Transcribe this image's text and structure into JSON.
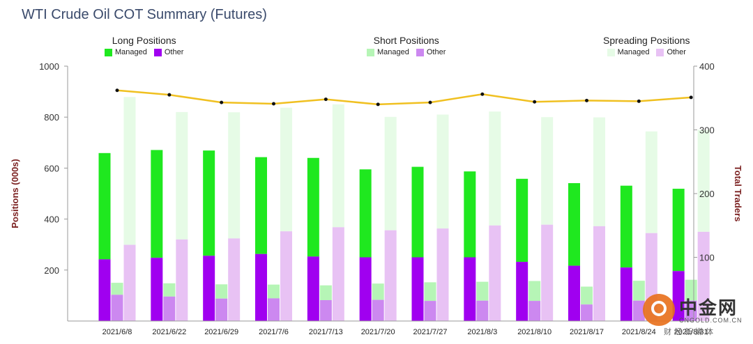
{
  "title": "WTI Crude Oil COT Summary (Futures)",
  "legend": {
    "long": {
      "heading": "Long Positions",
      "managed": "Managed",
      "other": "Other"
    },
    "short": {
      "heading": "Short Positions",
      "managed": "Managed",
      "other": "Other"
    },
    "spreading": {
      "heading": "Spreading Positions",
      "managed": "Managed",
      "other": "Other"
    }
  },
  "colors": {
    "long_managed": "#1fe81f",
    "long_other": "#a000f0",
    "short_managed": "#b6f5b6",
    "short_other": "#cc88f0",
    "spreading_managed": "#e6fbe6",
    "spreading_other": "#e8c2f4",
    "traders_line": "#f0c020",
    "traders_marker": "#111111"
  },
  "watermark": {
    "brand": "中金网",
    "url": "CNGOLD.COM.CN",
    "sub": "财经新媒体"
  },
  "chart_data": {
    "type": "bar",
    "title": "WTI Crude Oil COT Summary (Futures)",
    "ylabel": "Positions (000s)",
    "y2label": "Total Traders",
    "ylim": [
      0,
      1000
    ],
    "y2lim": [
      0,
      400
    ],
    "yticks": [
      "200",
      "400",
      "600",
      "800",
      "1000"
    ],
    "y2ticks": [
      "100",
      "200",
      "300",
      "400"
    ],
    "categories": [
      "2021/6/8",
      "2021/6/22",
      "2021/6/29",
      "2021/7/6",
      "2021/7/13",
      "2021/7/20",
      "2021/7/27",
      "2021/8/3",
      "2021/8/10",
      "2021/8/17",
      "2021/8/24",
      "2021/8/31"
    ],
    "series": [
      {
        "name": "Long Positions Managed",
        "group": "long",
        "values": [
          417,
          423,
          413,
          380,
          387,
          345,
          355,
          337,
          326,
          324,
          321,
          323
        ]
      },
      {
        "name": "Long Positions Other",
        "group": "long",
        "values": [
          242,
          248,
          256,
          263,
          253,
          250,
          250,
          250,
          232,
          217,
          210,
          196
        ]
      },
      {
        "name": "Short Positions Managed",
        "group": "short",
        "values": [
          47,
          52,
          56,
          54,
          58,
          64,
          73,
          74,
          78,
          70,
          78,
          82
        ]
      },
      {
        "name": "Short Positions Other",
        "group": "short",
        "values": [
          103,
          96,
          88,
          89,
          82,
          83,
          79,
          80,
          79,
          65,
          80,
          80
        ]
      },
      {
        "name": "Spreading Positions Managed",
        "group": "spreading",
        "values": [
          580,
          500,
          495,
          485,
          482,
          445,
          447,
          447,
          422,
          427,
          399,
          400
        ]
      },
      {
        "name": "Spreading Positions Other",
        "group": "spreading",
        "values": [
          299,
          320,
          324,
          352,
          368,
          356,
          363,
          375,
          378,
          372,
          345,
          350
        ]
      },
      {
        "name": "Total Traders",
        "type": "line",
        "axis": "right",
        "values": [
          362,
          355,
          343,
          341,
          348,
          340,
          343,
          356,
          344,
          346,
          345,
          351
        ]
      }
    ],
    "grid": false,
    "legend_position": "top"
  }
}
